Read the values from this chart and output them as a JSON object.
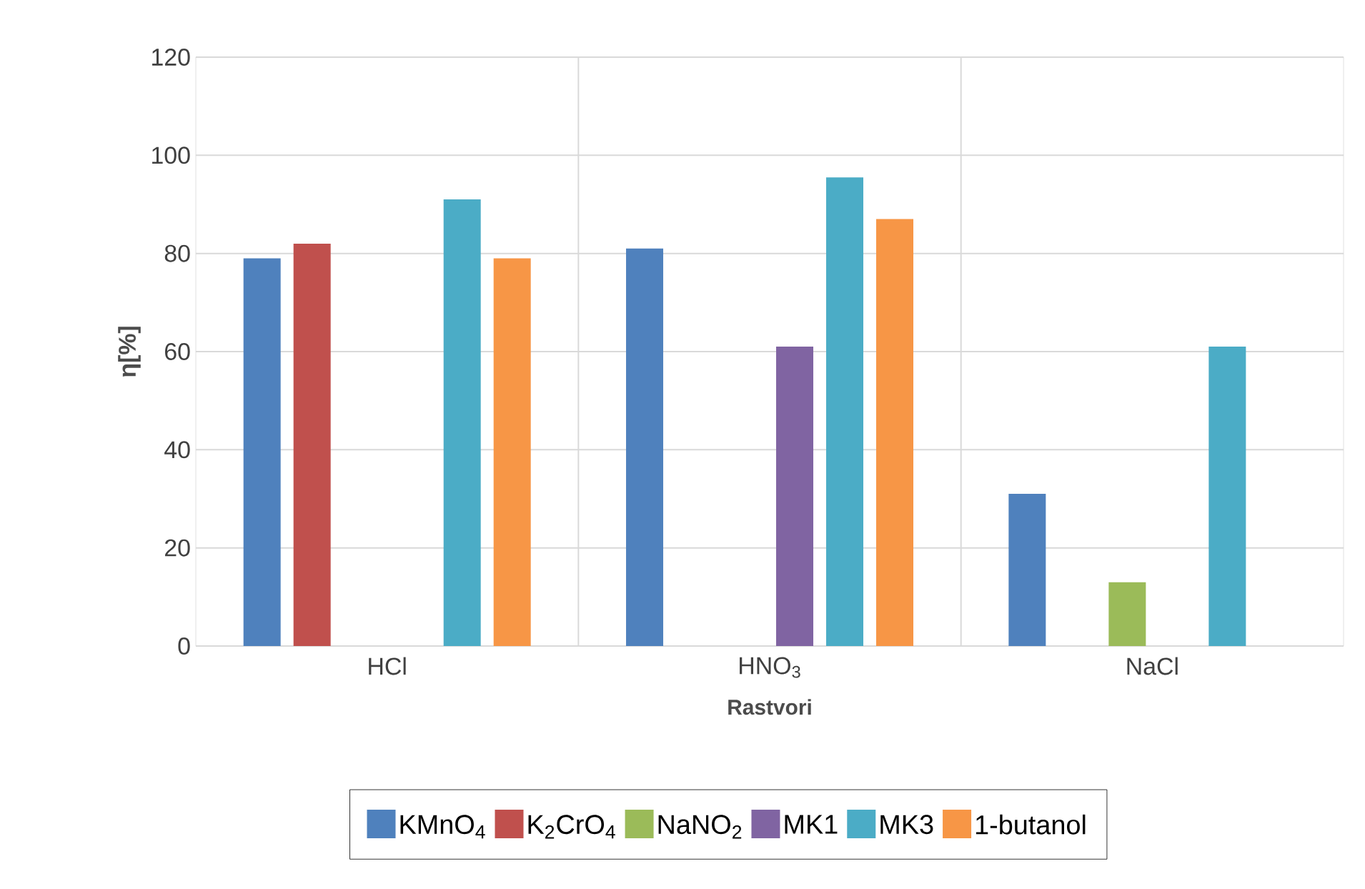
{
  "chart_data": {
    "type": "bar",
    "xlabel": "Rastvori",
    "ylabel": "η[%]",
    "categories": [
      "HCl",
      "HNO$_{3}$",
      "NaCl"
    ],
    "series": [
      {
        "name": "KMnO$_{4}$",
        "color": "#4f81bd",
        "values": [
          79,
          81,
          31
        ]
      },
      {
        "name": "K$_{2}$CrO$_{4}$",
        "color": "#c0504d",
        "values": [
          82,
          null,
          null
        ]
      },
      {
        "name": "NaNO$_{2}$",
        "color": "#9bbb59",
        "values": [
          null,
          null,
          13
        ]
      },
      {
        "name": "MK1",
        "color": "#8064a2",
        "values": [
          null,
          61,
          null
        ]
      },
      {
        "name": "MK3",
        "color": "#4bacc6",
        "values": [
          91,
          95.5,
          61
        ]
      },
      {
        "name": "1-butanol",
        "color": "#f79646",
        "values": [
          79,
          87,
          null
        ]
      }
    ],
    "ylim": [
      0,
      120
    ],
    "yticks": [
      0,
      20,
      40,
      60,
      80,
      100,
      120
    ],
    "grid": true,
    "legend": "bottom"
  }
}
